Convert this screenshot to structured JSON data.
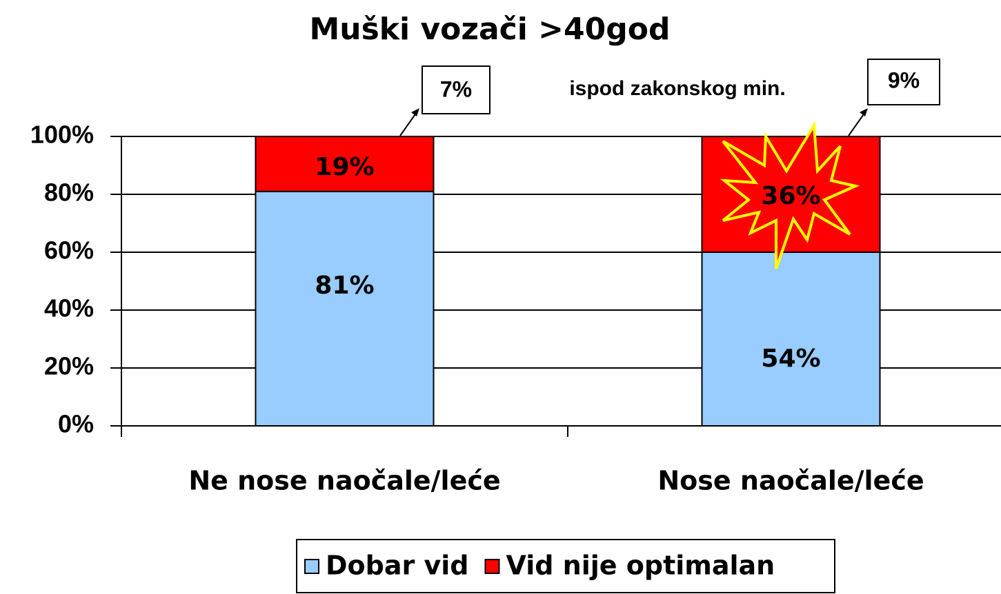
{
  "chart_data": {
    "type": "bar",
    "stacking": "percent",
    "title": "Muški vozači >40god",
    "categories": [
      "Ne nose naočale/leće",
      "Nose naočale/leće"
    ],
    "series": [
      {
        "name": "Dobar vid",
        "color": "#99ccff",
        "values": [
          81,
          54
        ],
        "value_labels": [
          "81%",
          "54%"
        ]
      },
      {
        "name": "Vid nije optimalan",
        "color": "#ff0000",
        "values": [
          19,
          36
        ],
        "value_labels": [
          "19%",
          "36%"
        ]
      }
    ],
    "ylim": [
      0,
      100
    ],
    "yticks": [
      {
        "value": 0,
        "label": "0%"
      },
      {
        "value": 20,
        "label": "20%"
      },
      {
        "value": 40,
        "label": "40%"
      },
      {
        "value": 60,
        "label": "60%"
      },
      {
        "value": 80,
        "label": "80%"
      },
      {
        "value": 100,
        "label": "100%"
      }
    ],
    "grid": true,
    "legend": "bottom",
    "annotations": [
      "7%",
      "ispod zakonskog min.",
      "9%"
    ]
  }
}
